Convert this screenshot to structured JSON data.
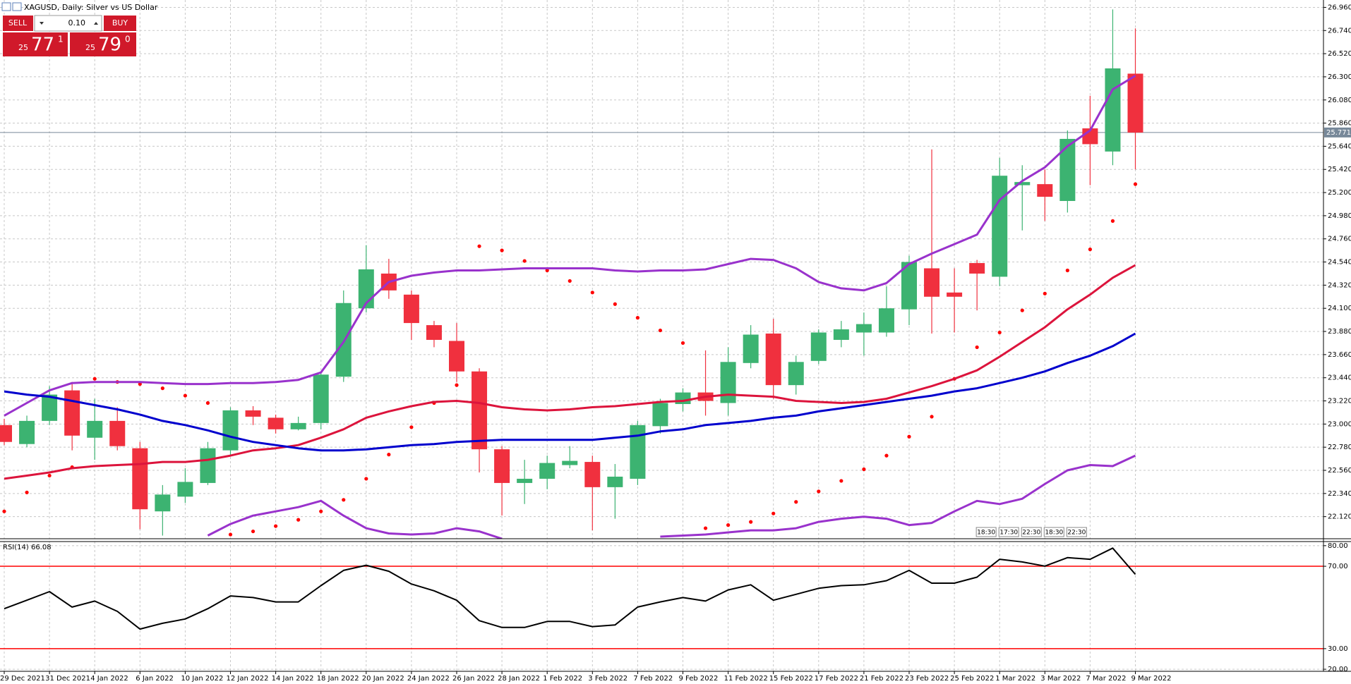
{
  "window": {
    "title": "XAGUSD, Daily:  Silver vs US Dollar"
  },
  "trade_panel": {
    "sell": "SELL",
    "volume": "0.10",
    "buy": "BUY",
    "bid": {
      "prefix": "25",
      "main": "77",
      "suffix": "1"
    },
    "ask": {
      "prefix": "25",
      "main": "79",
      "suffix": "0"
    }
  },
  "time_tags": [
    "18:30",
    "17:30",
    "22:30",
    "18:30",
    "22:30"
  ],
  "chart_data": [
    {
      "type": "candlestick",
      "categories": [
        "29 Dec 2021",
        null,
        "31 Dec 2021",
        null,
        "4 Jan 2022",
        null,
        "6 Jan 2022",
        null,
        "10 Jan 2022",
        null,
        "12 Jan 2022",
        null,
        "14 Jan 2022",
        null,
        "18 Jan 2022",
        null,
        "20 Jan 2022",
        null,
        "24 Jan 2022",
        null,
        "26 Jan 2022",
        null,
        "28 Jan 2022",
        null,
        "1 Feb 2022",
        null,
        "3 Feb 2022",
        null,
        "7 Feb 2022",
        null,
        "9 Feb 2022",
        null,
        "11 Feb 2022",
        null,
        "15 Feb 2022",
        null,
        "17 Feb 2022",
        null,
        "21 Feb 2022",
        null,
        "23 Feb 2022",
        null,
        "25 Feb 2022",
        null,
        "1 Mar 2022",
        null,
        "3 Mar 2022",
        null,
        "7 Mar 2022",
        null,
        "9 Mar 2022"
      ],
      "open": [
        22.99,
        22.81,
        23.03,
        23.32,
        22.87,
        23.03,
        22.77,
        22.17,
        22.31,
        22.44,
        22.75,
        23.13,
        23.06,
        22.95,
        23.01,
        23.45,
        24.1,
        24.43,
        24.23,
        23.94,
        23.79,
        23.5,
        22.76,
        22.44,
        22.48,
        22.61,
        22.64,
        22.4,
        22.48,
        22.98,
        23.19,
        23.3,
        23.2,
        23.58,
        23.86,
        23.37,
        23.6,
        23.8,
        23.87,
        23.87,
        24.09,
        24.48,
        24.25,
        24.53,
        24.4,
        25.27,
        25.28,
        25.12,
        25.81,
        25.59,
        26.33
      ],
      "high": [
        23.05,
        23.08,
        23.36,
        23.4,
        23.24,
        23.16,
        22.83,
        22.42,
        22.58,
        22.83,
        23.16,
        23.17,
        23.09,
        23.07,
        23.49,
        24.27,
        24.7,
        24.57,
        24.27,
        23.98,
        23.96,
        23.53,
        22.79,
        22.66,
        22.7,
        22.79,
        22.7,
        22.62,
        23.03,
        23.24,
        23.34,
        23.7,
        23.73,
        23.94,
        24.0,
        23.65,
        23.9,
        23.98,
        24.06,
        24.31,
        24.6,
        25.61,
        24.48,
        24.56,
        25.53,
        25.46,
        25.42,
        25.79,
        26.12,
        26.94,
        26.76
      ],
      "low": [
        22.8,
        22.78,
        22.99,
        22.75,
        22.66,
        22.75,
        22.0,
        21.94,
        22.25,
        22.42,
        22.7,
        22.99,
        22.91,
        22.94,
        22.95,
        23.4,
        24.06,
        24.19,
        23.8,
        23.73,
        23.4,
        22.54,
        22.13,
        22.24,
        22.38,
        22.58,
        21.99,
        22.1,
        22.42,
        22.91,
        23.12,
        23.08,
        23.08,
        23.53,
        23.24,
        23.28,
        23.57,
        23.73,
        23.65,
        23.83,
        23.94,
        23.86,
        23.87,
        24.08,
        24.31,
        24.84,
        24.93,
        25.01,
        25.27,
        25.46,
        25.42
      ],
      "close": [
        22.83,
        23.03,
        23.28,
        22.89,
        23.03,
        22.79,
        22.19,
        22.33,
        22.45,
        22.77,
        23.13,
        23.07,
        22.95,
        23.01,
        23.47,
        24.15,
        24.47,
        24.27,
        23.96,
        23.8,
        23.5,
        22.76,
        22.44,
        22.48,
        22.63,
        22.65,
        22.4,
        22.5,
        22.99,
        23.2,
        23.3,
        23.22,
        23.59,
        23.85,
        23.37,
        23.59,
        23.87,
        23.9,
        23.95,
        24.1,
        24.54,
        24.21,
        24.21,
        24.43,
        25.36,
        25.3,
        25.16,
        25.71,
        25.66,
        26.38,
        25.77
      ],
      "up_color": "#3cb371",
      "down_color": "#f0303e",
      "series": [
        {
          "color": "#9932cc",
          "values": [
            23.08,
            23.2,
            23.32,
            23.39,
            23.4,
            23.4,
            23.4,
            23.39,
            23.38,
            23.38,
            23.39,
            23.39,
            23.4,
            23.42,
            23.49,
            23.78,
            24.15,
            24.35,
            24.41,
            24.44,
            24.46,
            24.46,
            24.47,
            24.48,
            24.48,
            24.48,
            24.48,
            24.46,
            24.45,
            24.46,
            24.46,
            24.47,
            24.52,
            24.57,
            24.56,
            24.48,
            24.35,
            24.29,
            24.27,
            24.34,
            24.52,
            24.62,
            24.71,
            24.8,
            25.13,
            25.31,
            25.44,
            25.64,
            25.79,
            26.18,
            26.31
          ]
        },
        {
          "color": "#9932cc",
          "values": [
            null,
            null,
            null,
            null,
            null,
            null,
            null,
            null,
            null,
            21.94,
            22.05,
            22.13,
            22.17,
            22.21,
            22.27,
            22.13,
            22.01,
            21.96,
            21.95,
            21.96,
            22.01,
            21.98,
            21.91,
            null,
            null,
            null,
            null,
            null,
            null,
            21.93,
            21.94,
            21.95,
            21.97,
            21.99,
            21.99,
            22.01,
            22.07,
            22.1,
            22.12,
            22.1,
            22.04,
            22.06,
            22.17,
            22.27,
            22.24,
            22.29,
            22.43,
            22.56,
            22.61,
            22.6,
            22.7
          ]
        },
        {
          "color": "#dc143c",
          "values": [
            22.48,
            22.51,
            22.54,
            22.58,
            22.6,
            22.61,
            22.62,
            22.64,
            22.64,
            22.66,
            22.7,
            22.75,
            22.77,
            22.8,
            22.87,
            22.95,
            23.06,
            23.12,
            23.17,
            23.21,
            23.22,
            23.2,
            23.16,
            23.14,
            23.13,
            23.14,
            23.16,
            23.17,
            23.19,
            23.21,
            23.22,
            23.26,
            23.28,
            23.27,
            23.26,
            23.22,
            23.21,
            23.2,
            23.21,
            23.24,
            23.3,
            23.36,
            23.43,
            23.51,
            23.64,
            23.78,
            23.92,
            24.09,
            24.23,
            24.39,
            24.51
          ]
        },
        {
          "color": "#0000cd",
          "values": [
            23.31,
            23.28,
            23.26,
            23.22,
            23.18,
            23.14,
            23.09,
            23.03,
            22.99,
            22.94,
            22.88,
            22.83,
            22.8,
            22.77,
            22.75,
            22.75,
            22.76,
            22.78,
            22.8,
            22.81,
            22.83,
            22.84,
            22.85,
            22.85,
            22.85,
            22.85,
            22.85,
            22.87,
            22.89,
            22.93,
            22.95,
            22.99,
            23.01,
            23.03,
            23.06,
            23.08,
            23.12,
            23.15,
            23.18,
            23.21,
            23.24,
            23.27,
            23.31,
            23.34,
            23.39,
            23.44,
            23.5,
            23.58,
            23.65,
            23.74,
            23.86
          ]
        },
        {
          "color": "#ff0000",
          "marker": "dot",
          "values": [
            22.17,
            22.35,
            22.51,
            22.59,
            23.43,
            23.4,
            23.38,
            23.34,
            23.27,
            23.2,
            21.95,
            21.98,
            22.03,
            22.09,
            22.17,
            22.28,
            22.48,
            22.71,
            22.97,
            23.2,
            23.37,
            24.69,
            24.65,
            24.55,
            24.46,
            24.36,
            24.25,
            24.14,
            24.01,
            23.89,
            23.77,
            22.01,
            22.04,
            22.07,
            22.15,
            22.26,
            22.36,
            22.46,
            22.57,
            22.7,
            22.88,
            23.07,
            23.43,
            23.73,
            23.87,
            24.08,
            24.24,
            24.46,
            24.66,
            24.93,
            25.28
          ]
        }
      ],
      "current_price": {
        "value": 25.771,
        "label": "25.771"
      },
      "ylim": [
        21.91,
        27.03
      ],
      "yticks": [
        {
          "value": 26.96,
          "label": "26.960"
        },
        {
          "value": 26.74,
          "label": "26.740"
        },
        {
          "value": 26.52,
          "label": "26.520"
        },
        {
          "value": 26.3,
          "label": "26.300"
        },
        {
          "value": 26.08,
          "label": "26.080"
        },
        {
          "value": 25.86,
          "label": "25.860"
        },
        {
          "value": 25.64,
          "label": "25.640"
        },
        {
          "value": 25.42,
          "label": "25.420"
        },
        {
          "value": 25.2,
          "label": "25.200"
        },
        {
          "value": 24.98,
          "label": "24.980"
        },
        {
          "value": 24.76,
          "label": "24.760"
        },
        {
          "value": 24.54,
          "label": "24.540"
        },
        {
          "value": 24.32,
          "label": "24.320"
        },
        {
          "value": 24.1,
          "label": "24.100"
        },
        {
          "value": 23.88,
          "label": "23.880"
        },
        {
          "value": 23.66,
          "label": "23.660"
        },
        {
          "value": 23.44,
          "label": "23.440"
        },
        {
          "value": 23.22,
          "label": "23.220"
        },
        {
          "value": 23.0,
          "label": "23.000"
        },
        {
          "value": 22.78,
          "label": "22.780"
        },
        {
          "value": 22.56,
          "label": "22.560"
        },
        {
          "value": 22.34,
          "label": "22.340"
        },
        {
          "value": 22.12,
          "label": "22.120"
        }
      ],
      "grid": true
    },
    {
      "type": "line",
      "title": "RSI(14) 66.08",
      "color": "#000000",
      "values": [
        49.4,
        53.5,
        57.7,
        50.2,
        53.1,
        48.1,
        39.5,
        42.3,
        44.4,
        49.4,
        55.6,
        54.8,
        52.7,
        52.7,
        60.6,
        68.0,
        70.5,
        67.6,
        61.4,
        58.1,
        53.5,
        43.6,
        40.3,
        40.3,
        43.2,
        43.2,
        40.7,
        41.5,
        50.2,
        52.7,
        54.8,
        53.1,
        58.5,
        61.0,
        53.5,
        56.4,
        59.3,
        60.6,
        61.0,
        63.0,
        68.0,
        61.8,
        61.8,
        64.7,
        73.4,
        72.1,
        70.1,
        74.2,
        73.4,
        78.8,
        66.08
      ],
      "levels": [
        70,
        30
      ],
      "level_color": "#ff0000",
      "ylim": [
        19,
        82
      ],
      "yticks": [
        {
          "value": 80,
          "label": "80.00"
        },
        {
          "value": 70,
          "label": "70.00"
        },
        {
          "value": 30,
          "label": "30.00"
        },
        {
          "value": 20,
          "label": "20.00"
        }
      ],
      "grid": true
    }
  ]
}
